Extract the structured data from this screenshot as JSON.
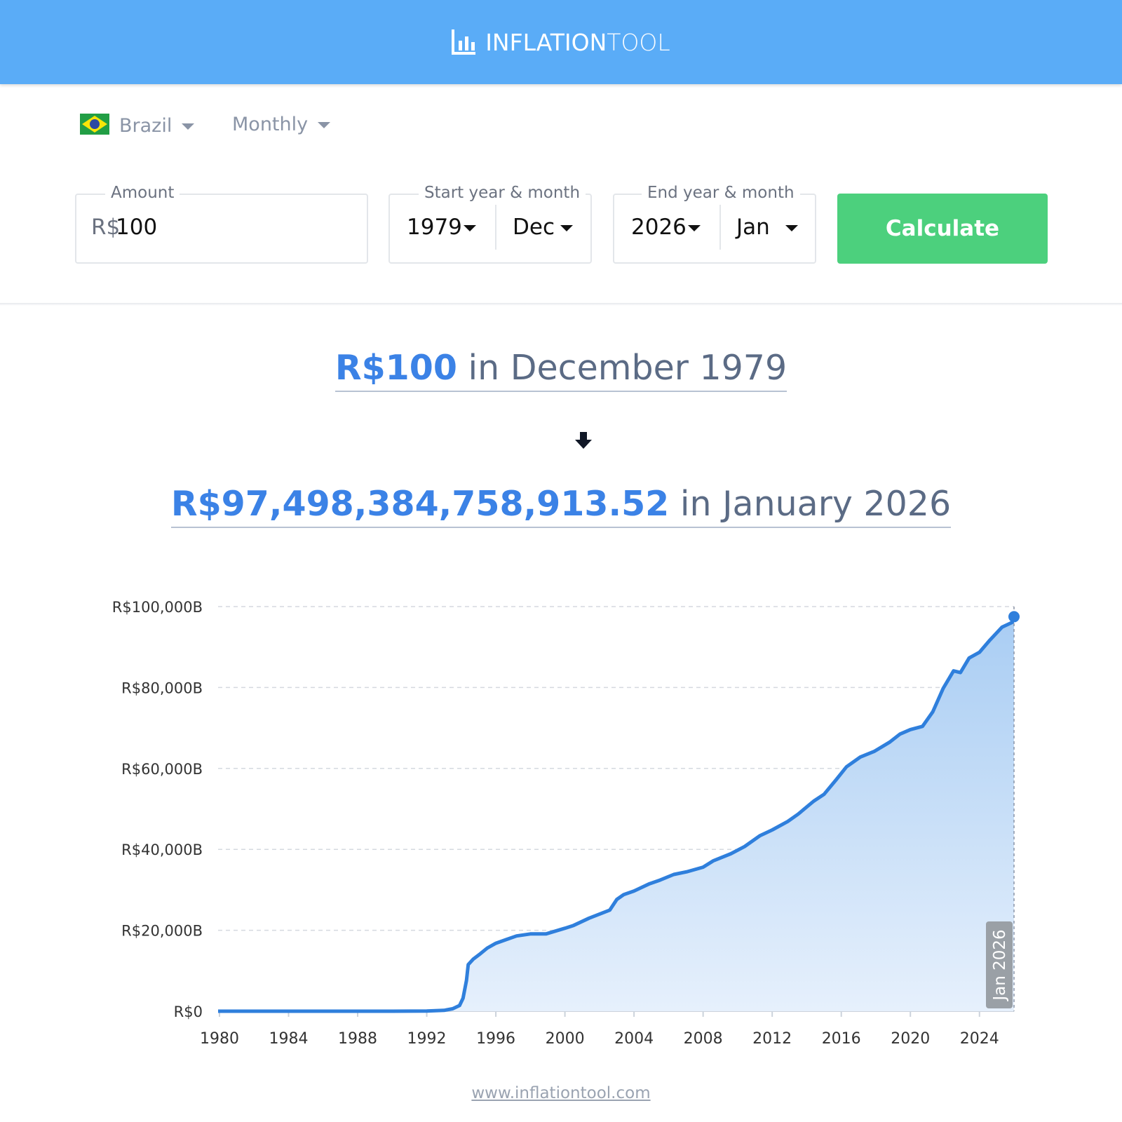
{
  "header": {
    "logo_bold": "INFLATION",
    "logo_light": "TOOL"
  },
  "filters": {
    "country": "Brazil",
    "frequency": "Monthly"
  },
  "form": {
    "amount_label": "Amount",
    "currency": "R$",
    "amount": "100",
    "start_label": "Start year & month",
    "start_year": "1979",
    "start_month": "Dec",
    "end_label": "End year & month",
    "end_year": "2026",
    "end_month": "Jan",
    "button": "Calculate"
  },
  "result": {
    "from_amount": "R$100",
    "from_text": "in December 1979",
    "to_amount": "R$97,498,384,758,913.52",
    "to_text": "in January 2026"
  },
  "chart_data": {
    "type": "line",
    "color": "#2f7fdc",
    "grid": true,
    "annotation": "Jan 2026",
    "x": [
      1979.92,
      1990,
      1992,
      1993,
      1993.5,
      1993.9,
      1994.1,
      1994.3,
      1994.4,
      1994.7,
      1995.1,
      1995.5,
      1996,
      1996.6,
      1997.2,
      1998,
      1998.9,
      2000,
      2000.5,
      2001.4,
      2002.6,
      2003,
      2003.4,
      2004,
      2004.9,
      2005.5,
      2006.3,
      2007.1,
      2008,
      2008.6,
      2009.6,
      2010.4,
      2011.3,
      2012,
      2012.9,
      2013.5,
      2014.4,
      2015,
      2015.7,
      2016.3,
      2017.1,
      2017.9,
      2018.8,
      2019.4,
      2020,
      2020.7,
      2021.3,
      2021.9,
      2022.5,
      2022.9,
      2023.4,
      2024,
      2024.6,
      2025.3,
      2025.9,
      2026.0
    ],
    "values": [
      0,
      1,
      40,
      200,
      600,
      1400,
      3200,
      7600,
      11500,
      12900,
      14200,
      15600,
      16800,
      17700,
      18600,
      19100,
      19100,
      20500,
      21200,
      23000,
      25000,
      27600,
      28800,
      29700,
      31500,
      32400,
      33800,
      34500,
      35600,
      37200,
      38900,
      40700,
      43400,
      44800,
      46900,
      48700,
      51900,
      53600,
      57200,
      60400,
      62800,
      64200,
      66500,
      68500,
      69600,
      70400,
      74000,
      79800,
      84100,
      83700,
      87300,
      88700,
      91700,
      94900,
      96100,
      97498
    ],
    "xlim": [
      1979.92,
      2026.0
    ],
    "ylim": [
      0,
      100000
    ],
    "xticks": [
      1980,
      1984,
      1988,
      1992,
      1996,
      2000,
      2004,
      2008,
      2012,
      2016,
      2020,
      2024
    ],
    "yticks": [
      {
        "value": 0,
        "label": "R$0"
      },
      {
        "value": 20000,
        "label": "R$20,000B"
      },
      {
        "value": 40000,
        "label": "R$40,000B"
      },
      {
        "value": 60000,
        "label": "R$60,000B"
      },
      {
        "value": 80000,
        "label": "R$80,000B"
      },
      {
        "value": 100000,
        "label": "R$100,000B"
      }
    ]
  },
  "footer": {
    "link": "www.inflationtool.com"
  }
}
